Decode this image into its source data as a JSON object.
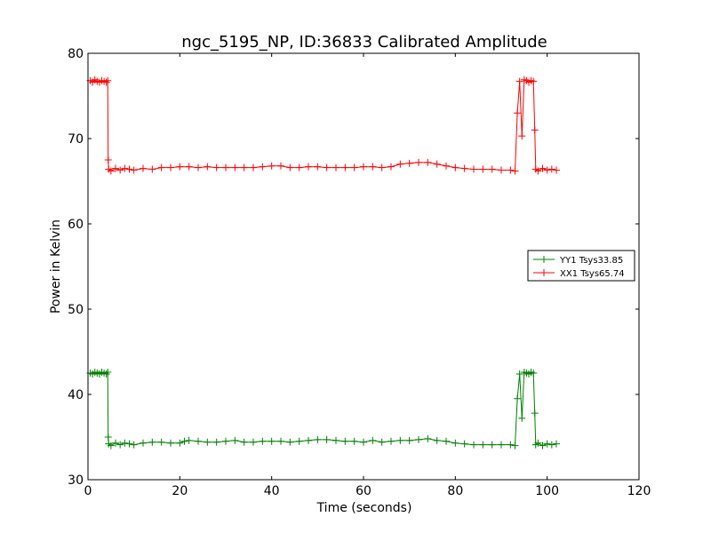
{
  "chart_data": {
    "type": "line",
    "title": "ngc_5195_NP, ID:36833 Calibrated Amplitude",
    "xlabel": "Time (seconds)",
    "ylabel": "Power in Kelvin",
    "xlim": [
      0,
      120
    ],
    "ylim": [
      30,
      80
    ],
    "xticks": [
      "0",
      "20",
      "40",
      "60",
      "80",
      "100",
      "120"
    ],
    "yticks": [
      "30",
      "40",
      "50",
      "60",
      "70",
      "80"
    ],
    "grid": false,
    "legend_position": "right",
    "series": [
      {
        "name": "YY1 Tsys33.85",
        "color": "#008000",
        "marker": "plus",
        "segments": [
          [
            [
              0.5,
              42.5
            ],
            [
              1,
              42.4
            ],
            [
              1.5,
              42.6
            ],
            [
              2,
              42.5
            ],
            [
              2.5,
              42.4
            ],
            [
              3,
              42.6
            ],
            [
              3.5,
              42.5
            ],
            [
              4,
              42.4
            ],
            [
              4.3,
              42.6
            ],
            [
              4.4,
              35.0
            ],
            [
              4.5,
              34.2
            ],
            [
              5,
              34.0
            ],
            [
              6,
              34.3
            ],
            [
              7,
              34.1
            ],
            [
              8,
              34.3
            ],
            [
              9,
              34.2
            ],
            [
              10,
              34.1
            ],
            [
              12,
              34.3
            ],
            [
              14,
              34.4
            ],
            [
              16,
              34.4
            ],
            [
              18,
              34.3
            ],
            [
              20,
              34.3
            ],
            [
              21,
              34.5
            ],
            [
              22,
              34.6
            ],
            [
              24,
              34.5
            ],
            [
              26,
              34.4
            ],
            [
              28,
              34.4
            ],
            [
              30,
              34.5
            ],
            [
              32,
              34.6
            ],
            [
              34,
              34.4
            ],
            [
              36,
              34.4
            ],
            [
              38,
              34.5
            ],
            [
              40,
              34.5
            ],
            [
              42,
              34.5
            ],
            [
              44,
              34.4
            ],
            [
              46,
              34.5
            ],
            [
              48,
              34.6
            ],
            [
              50,
              34.7
            ],
            [
              52,
              34.7
            ],
            [
              54,
              34.6
            ],
            [
              56,
              34.5
            ],
            [
              58,
              34.5
            ],
            [
              60,
              34.4
            ],
            [
              62,
              34.6
            ],
            [
              64,
              34.4
            ],
            [
              66,
              34.5
            ],
            [
              68,
              34.6
            ],
            [
              70,
              34.6
            ],
            [
              72,
              34.7
            ],
            [
              74,
              34.8
            ],
            [
              76,
              34.6
            ],
            [
              78,
              34.5
            ],
            [
              80,
              34.3
            ],
            [
              82,
              34.2
            ],
            [
              84,
              34.1
            ],
            [
              86,
              34.1
            ],
            [
              88,
              34.1
            ],
            [
              90,
              34.1
            ],
            [
              92,
              34.1
            ],
            [
              93,
              34.0
            ],
            [
              93.5,
              39.5
            ],
            [
              94,
              42.4
            ],
            [
              94.5,
              37.2
            ],
            [
              95,
              42.6
            ],
            [
              95.5,
              42.5
            ],
            [
              96,
              42.4
            ],
            [
              96.5,
              42.6
            ],
            [
              97,
              42.5
            ],
            [
              97.3,
              37.8
            ],
            [
              97.5,
              34.1
            ],
            [
              98,
              34.3
            ],
            [
              99,
              34.0
            ],
            [
              100,
              34.2
            ],
            [
              101,
              34.1
            ],
            [
              102,
              34.2
            ]
          ]
        ]
      },
      {
        "name": "XX1 Tsys65.74",
        "color": "#ff0000",
        "marker": "plus",
        "segments": [
          [
            [
              0.5,
              76.8
            ],
            [
              1,
              76.6
            ],
            [
              1.5,
              76.9
            ],
            [
              2,
              76.7
            ],
            [
              2.5,
              76.6
            ],
            [
              3,
              76.8
            ],
            [
              3.5,
              76.7
            ],
            [
              4,
              76.6
            ],
            [
              4.3,
              76.8
            ],
            [
              4.4,
              67.5
            ],
            [
              4.5,
              66.4
            ],
            [
              5,
              66.2
            ],
            [
              6,
              66.5
            ],
            [
              7,
              66.3
            ],
            [
              8,
              66.5
            ],
            [
              9,
              66.4
            ],
            [
              10,
              66.3
            ],
            [
              12,
              66.5
            ],
            [
              14,
              66.4
            ],
            [
              16,
              66.6
            ],
            [
              18,
              66.6
            ],
            [
              20,
              66.7
            ],
            [
              22,
              66.7
            ],
            [
              24,
              66.6
            ],
            [
              26,
              66.7
            ],
            [
              28,
              66.6
            ],
            [
              30,
              66.6
            ],
            [
              32,
              66.6
            ],
            [
              34,
              66.6
            ],
            [
              36,
              66.6
            ],
            [
              38,
              66.7
            ],
            [
              40,
              66.8
            ],
            [
              42,
              66.8
            ],
            [
              44,
              66.6
            ],
            [
              46,
              66.6
            ],
            [
              48,
              66.7
            ],
            [
              50,
              66.7
            ],
            [
              52,
              66.6
            ],
            [
              54,
              66.6
            ],
            [
              56,
              66.6
            ],
            [
              58,
              66.6
            ],
            [
              60,
              66.7
            ],
            [
              62,
              66.7
            ],
            [
              64,
              66.6
            ],
            [
              66,
              66.7
            ],
            [
              68,
              67.0
            ],
            [
              70,
              67.1
            ],
            [
              72,
              67.2
            ],
            [
              74,
              67.2
            ],
            [
              76,
              67.0
            ],
            [
              78,
              66.8
            ],
            [
              80,
              66.6
            ],
            [
              82,
              66.5
            ],
            [
              84,
              66.4
            ],
            [
              86,
              66.4
            ],
            [
              88,
              66.4
            ],
            [
              90,
              66.3
            ],
            [
              92,
              66.3
            ],
            [
              93,
              66.2
            ],
            [
              93.5,
              73.0
            ],
            [
              94,
              76.7
            ],
            [
              94.5,
              70.3
            ],
            [
              95,
              76.9
            ],
            [
              95.5,
              76.8
            ],
            [
              96,
              76.6
            ],
            [
              96.5,
              76.8
            ],
            [
              97,
              76.7
            ],
            [
              97.3,
              71.0
            ],
            [
              97.5,
              66.4
            ],
            [
              98,
              66.2
            ],
            [
              99,
              66.5
            ],
            [
              100,
              66.3
            ],
            [
              101,
              66.4
            ],
            [
              102,
              66.3
            ]
          ]
        ]
      }
    ]
  }
}
